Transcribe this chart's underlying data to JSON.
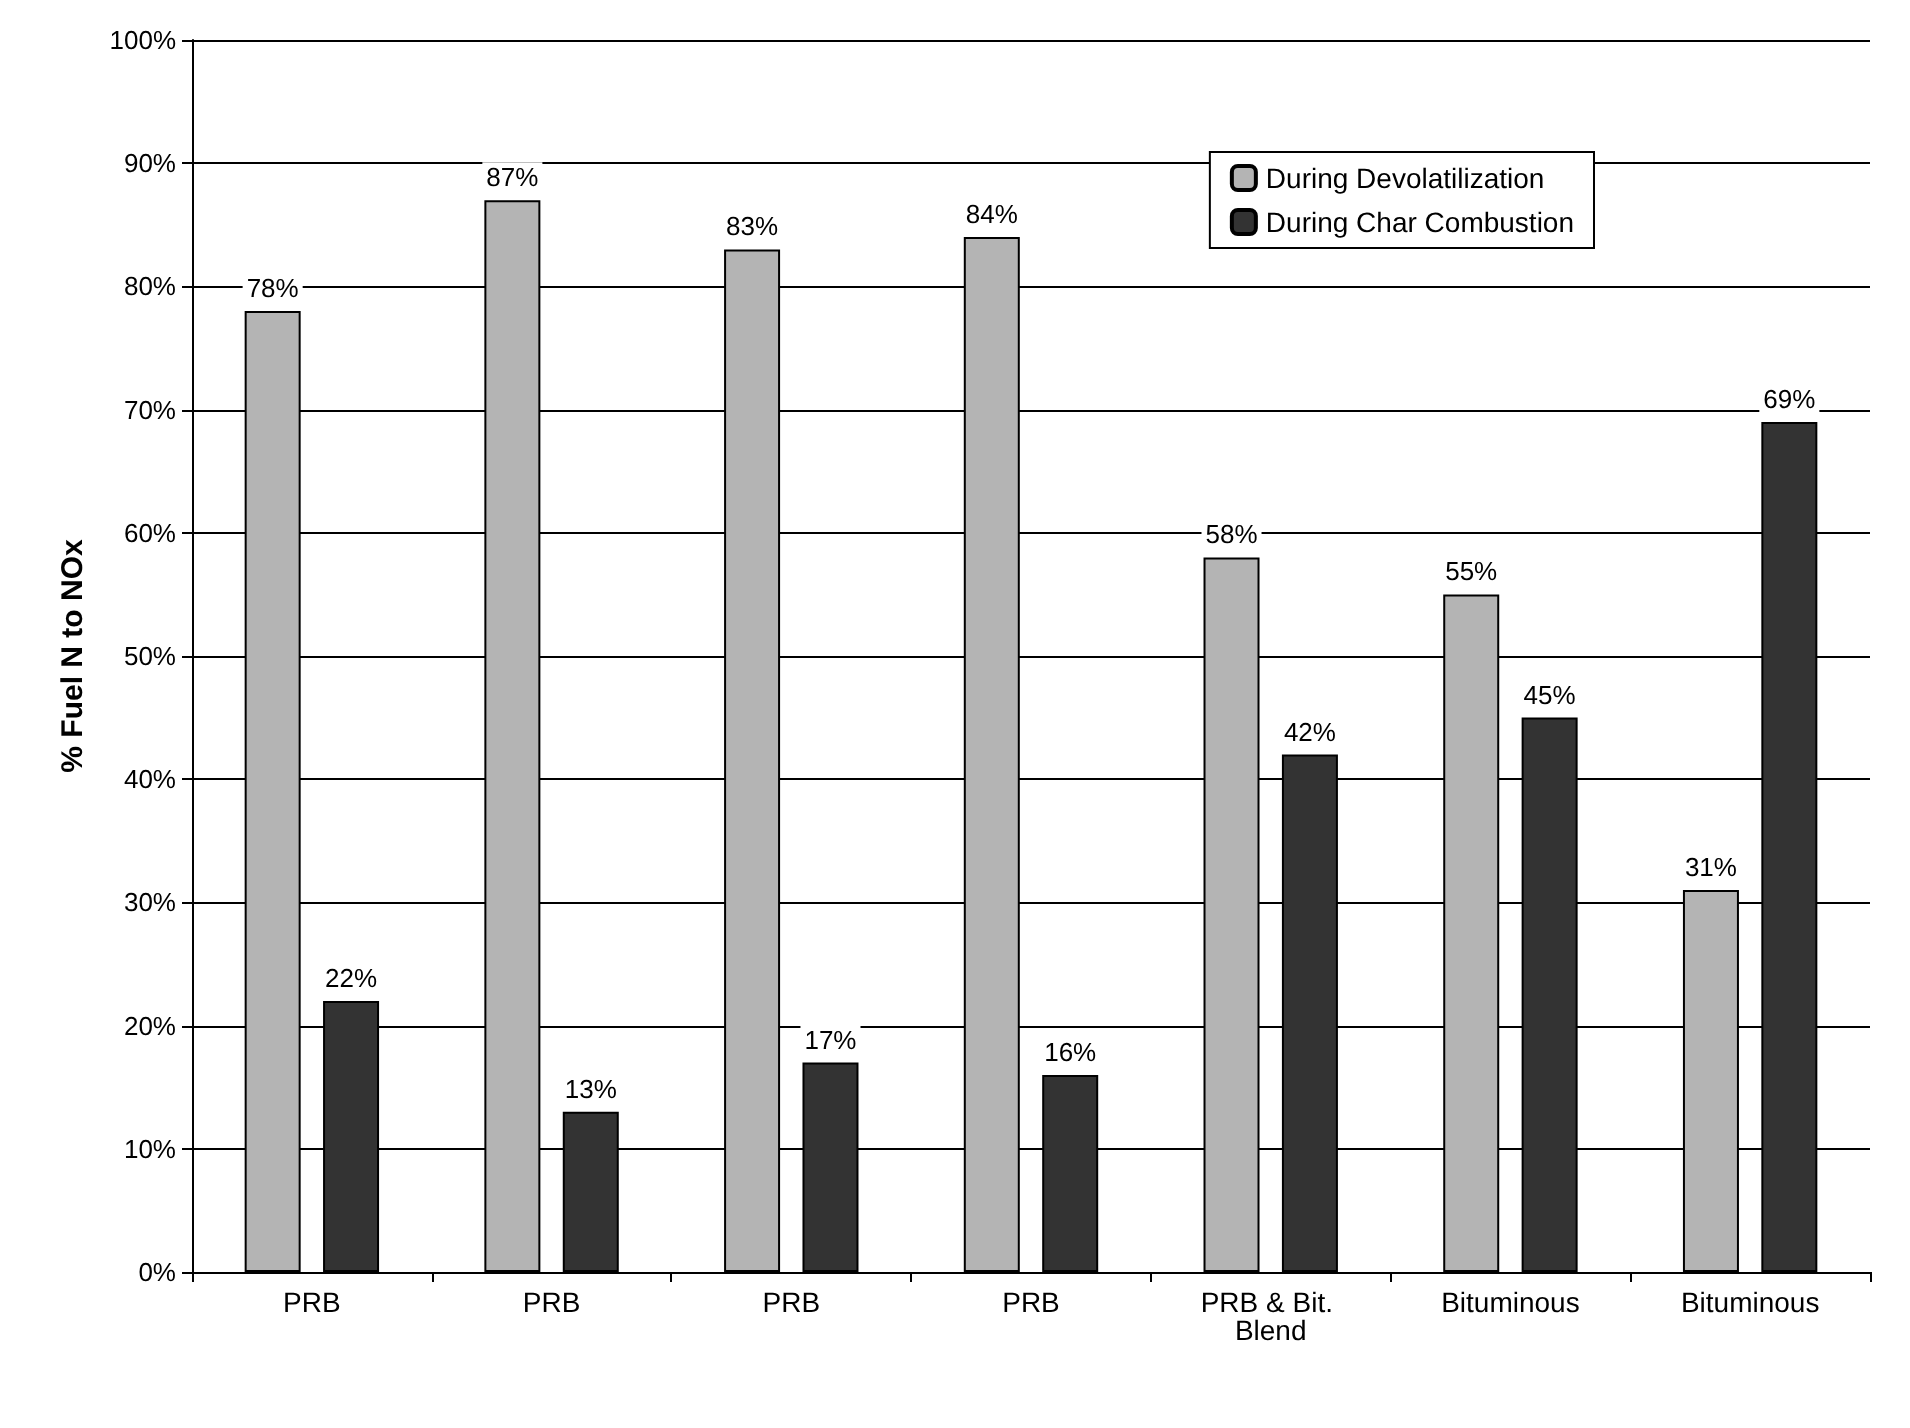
{
  "chart_data": {
    "type": "bar",
    "ylabel": "% Fuel N to NOx",
    "categories": [
      "PRB",
      "PRB",
      "PRB",
      "PRB",
      "PRB & Bit. Blend",
      "Bituminous",
      "Bituminous"
    ],
    "series": [
      {
        "name": "During Devolatilization",
        "color": "#b4b4b4",
        "values": [
          78,
          87,
          83,
          84,
          58,
          55,
          31
        ],
        "value_labels": [
          "78%",
          "87%",
          "83%",
          "84%",
          "58%",
          "55%",
          "31%"
        ]
      },
      {
        "name": "During Char Combustion",
        "color": "#333333",
        "values": [
          22,
          13,
          17,
          16,
          42,
          45,
          69
        ],
        "value_labels": [
          "22%",
          "13%",
          "17%",
          "16%",
          "42%",
          "45%",
          "69%"
        ]
      }
    ],
    "ylim": [
      0,
      100
    ],
    "yticks": [
      {
        "value": 0,
        "label": "0%"
      },
      {
        "value": 10,
        "label": "10%"
      },
      {
        "value": 20,
        "label": "20%"
      },
      {
        "value": 30,
        "label": "30%"
      },
      {
        "value": 40,
        "label": "40%"
      },
      {
        "value": 50,
        "label": "50%"
      },
      {
        "value": 60,
        "label": "60%"
      },
      {
        "value": 70,
        "label": "70%"
      },
      {
        "value": 80,
        "label": "80%"
      },
      {
        "value": 90,
        "label": "90%"
      },
      {
        "value": 100,
        "label": "100%"
      }
    ],
    "grid": "y",
    "legend": "top right"
  }
}
